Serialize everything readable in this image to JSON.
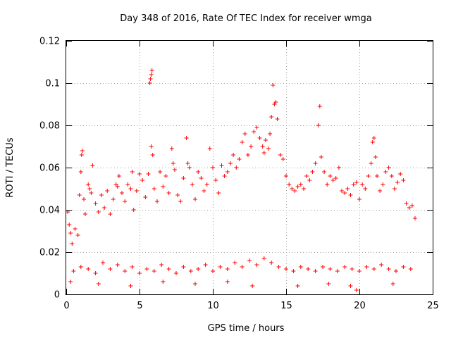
{
  "chart_data": {
    "type": "scatter",
    "title": "Day 348 of 2016, Rate Of TEC Index for receiver wmga",
    "xlabel": "GPS time / hours",
    "ylabel": "ROTI / TECUs",
    "xlim": [
      0,
      25
    ],
    "ylim": [
      0,
      0.12
    ],
    "xticks": [
      0,
      5,
      10,
      15,
      20,
      25
    ],
    "yticks": [
      0,
      0.02,
      0.04,
      0.06,
      0.08,
      0.1,
      0.12
    ],
    "xtick_labels": [
      "0",
      "5",
      "10",
      "15",
      "20",
      "25"
    ],
    "ytick_labels": [
      "0",
      "0.02",
      "0.04",
      "0.06",
      "0.08",
      "0.1",
      "0.12"
    ],
    "grid": true,
    "marker": "plus",
    "series": [
      {
        "color": "#ff0000",
        "points": [
          [
            0.1,
            0.039
          ],
          [
            0.2,
            0.033
          ],
          [
            0.3,
            0.029
          ],
          [
            0.4,
            0.024
          ],
          [
            0.6,
            0.031
          ],
          [
            0.8,
            0.028
          ],
          [
            0.9,
            0.047
          ],
          [
            1.0,
            0.058
          ],
          [
            1.05,
            0.066
          ],
          [
            1.1,
            0.068
          ],
          [
            1.2,
            0.045
          ],
          [
            1.3,
            0.038
          ],
          [
            1.5,
            0.052
          ],
          [
            1.6,
            0.05
          ],
          [
            1.7,
            0.048
          ],
          [
            1.8,
            0.061
          ],
          [
            2.0,
            0.043
          ],
          [
            2.2,
            0.039
          ],
          [
            2.4,
            0.047
          ],
          [
            2.6,
            0.041
          ],
          [
            2.8,
            0.049
          ],
          [
            3.0,
            0.038
          ],
          [
            3.2,
            0.045
          ],
          [
            3.4,
            0.052
          ],
          [
            3.5,
            0.051
          ],
          [
            3.6,
            0.056
          ],
          [
            3.8,
            0.048
          ],
          [
            4.0,
            0.044
          ],
          [
            4.2,
            0.052
          ],
          [
            4.4,
            0.05
          ],
          [
            4.5,
            0.058
          ],
          [
            4.6,
            0.04
          ],
          [
            4.8,
            0.049
          ],
          [
            5.0,
            0.057
          ],
          [
            5.2,
            0.054
          ],
          [
            5.4,
            0.046
          ],
          [
            5.6,
            0.057
          ],
          [
            5.7,
            0.1
          ],
          [
            5.75,
            0.102
          ],
          [
            5.8,
            0.104
          ],
          [
            5.85,
            0.106
          ],
          [
            5.8,
            0.07
          ],
          [
            5.9,
            0.066
          ],
          [
            6.0,
            0.05
          ],
          [
            6.2,
            0.044
          ],
          [
            6.4,
            0.058
          ],
          [
            6.6,
            0.051
          ],
          [
            6.8,
            0.056
          ],
          [
            7.0,
            0.048
          ],
          [
            7.2,
            0.069
          ],
          [
            7.3,
            0.062
          ],
          [
            7.4,
            0.059
          ],
          [
            7.6,
            0.047
          ],
          [
            7.8,
            0.044
          ],
          [
            8.0,
            0.055
          ],
          [
            8.2,
            0.074
          ],
          [
            8.3,
            0.062
          ],
          [
            8.4,
            0.06
          ],
          [
            8.6,
            0.052
          ],
          [
            8.8,
            0.045
          ],
          [
            9.0,
            0.058
          ],
          [
            9.2,
            0.055
          ],
          [
            9.4,
            0.049
          ],
          [
            9.6,
            0.052
          ],
          [
            9.8,
            0.069
          ],
          [
            10.0,
            0.06
          ],
          [
            10.2,
            0.054
          ],
          [
            10.4,
            0.048
          ],
          [
            10.6,
            0.061
          ],
          [
            10.8,
            0.056
          ],
          [
            11.0,
            0.058
          ],
          [
            11.2,
            0.062
          ],
          [
            11.4,
            0.066
          ],
          [
            11.6,
            0.06
          ],
          [
            11.8,
            0.064
          ],
          [
            12.0,
            0.072
          ],
          [
            12.2,
            0.076
          ],
          [
            12.4,
            0.066
          ],
          [
            12.6,
            0.07
          ],
          [
            12.8,
            0.077
          ],
          [
            13.0,
            0.079
          ],
          [
            13.2,
            0.074
          ],
          [
            13.4,
            0.07
          ],
          [
            13.5,
            0.067
          ],
          [
            13.6,
            0.073
          ],
          [
            13.8,
            0.069
          ],
          [
            13.9,
            0.076
          ],
          [
            14.0,
            0.084
          ],
          [
            14.1,
            0.099
          ],
          [
            14.2,
            0.09
          ],
          [
            14.3,
            0.091
          ],
          [
            14.4,
            0.083
          ],
          [
            14.6,
            0.066
          ],
          [
            14.8,
            0.064
          ],
          [
            15.0,
            0.056
          ],
          [
            15.2,
            0.052
          ],
          [
            15.4,
            0.05
          ],
          [
            15.6,
            0.049
          ],
          [
            15.8,
            0.051
          ],
          [
            16.0,
            0.052
          ],
          [
            16.2,
            0.05
          ],
          [
            16.4,
            0.056
          ],
          [
            16.6,
            0.054
          ],
          [
            16.8,
            0.058
          ],
          [
            17.0,
            0.062
          ],
          [
            17.2,
            0.08
          ],
          [
            17.3,
            0.089
          ],
          [
            17.4,
            0.065
          ],
          [
            17.6,
            0.058
          ],
          [
            17.8,
            0.052
          ],
          [
            18.0,
            0.056
          ],
          [
            18.2,
            0.054
          ],
          [
            18.4,
            0.055
          ],
          [
            18.6,
            0.06
          ],
          [
            18.8,
            0.049
          ],
          [
            19.0,
            0.048
          ],
          [
            19.2,
            0.05
          ],
          [
            19.4,
            0.047
          ],
          [
            19.6,
            0.052
          ],
          [
            19.8,
            0.053
          ],
          [
            20.0,
            0.045
          ],
          [
            20.2,
            0.052
          ],
          [
            20.4,
            0.05
          ],
          [
            20.6,
            0.056
          ],
          [
            20.8,
            0.062
          ],
          [
            20.9,
            0.072
          ],
          [
            21.0,
            0.074
          ],
          [
            21.1,
            0.065
          ],
          [
            21.2,
            0.056
          ],
          [
            21.4,
            0.049
          ],
          [
            21.6,
            0.052
          ],
          [
            21.8,
            0.058
          ],
          [
            22.0,
            0.06
          ],
          [
            22.2,
            0.056
          ],
          [
            22.4,
            0.05
          ],
          [
            22.6,
            0.053
          ],
          [
            22.8,
            0.057
          ],
          [
            23.0,
            0.054
          ],
          [
            23.2,
            0.043
          ],
          [
            23.4,
            0.041
          ],
          [
            23.6,
            0.042
          ],
          [
            23.8,
            0.036
          ],
          [
            0.5,
            0.011
          ],
          [
            1.0,
            0.013
          ],
          [
            1.5,
            0.012
          ],
          [
            2.0,
            0.01
          ],
          [
            2.5,
            0.015
          ],
          [
            3.0,
            0.012
          ],
          [
            3.5,
            0.014
          ],
          [
            4.0,
            0.011
          ],
          [
            4.5,
            0.013
          ],
          [
            5.0,
            0.01
          ],
          [
            5.5,
            0.012
          ],
          [
            6.0,
            0.011
          ],
          [
            6.5,
            0.014
          ],
          [
            7.0,
            0.012
          ],
          [
            7.5,
            0.01
          ],
          [
            8.0,
            0.013
          ],
          [
            8.5,
            0.011
          ],
          [
            9.0,
            0.012
          ],
          [
            9.5,
            0.014
          ],
          [
            10.0,
            0.011
          ],
          [
            10.5,
            0.013
          ],
          [
            11.0,
            0.012
          ],
          [
            11.5,
            0.015
          ],
          [
            12.0,
            0.013
          ],
          [
            12.5,
            0.016
          ],
          [
            13.0,
            0.014
          ],
          [
            13.5,
            0.017
          ],
          [
            14.0,
            0.015
          ],
          [
            14.5,
            0.013
          ],
          [
            15.0,
            0.012
          ],
          [
            15.5,
            0.011
          ],
          [
            16.0,
            0.013
          ],
          [
            16.5,
            0.012
          ],
          [
            17.0,
            0.011
          ],
          [
            17.5,
            0.013
          ],
          [
            18.0,
            0.012
          ],
          [
            18.5,
            0.011
          ],
          [
            19.0,
            0.013
          ],
          [
            19.5,
            0.012
          ],
          [
            20.0,
            0.011
          ],
          [
            20.5,
            0.013
          ],
          [
            21.0,
            0.012
          ],
          [
            21.5,
            0.014
          ],
          [
            22.0,
            0.012
          ],
          [
            22.5,
            0.011
          ],
          [
            23.0,
            0.013
          ],
          [
            23.5,
            0.012
          ],
          [
            0.3,
            0.006
          ],
          [
            2.2,
            0.005
          ],
          [
            4.4,
            0.004
          ],
          [
            6.6,
            0.006
          ],
          [
            8.8,
            0.005
          ],
          [
            11.0,
            0.006
          ],
          [
            12.7,
            0.004
          ],
          [
            15.8,
            0.004
          ],
          [
            17.9,
            0.005
          ],
          [
            19.4,
            0.004
          ],
          [
            19.8,
            0.002
          ],
          [
            22.3,
            0.005
          ]
        ]
      }
    ]
  }
}
